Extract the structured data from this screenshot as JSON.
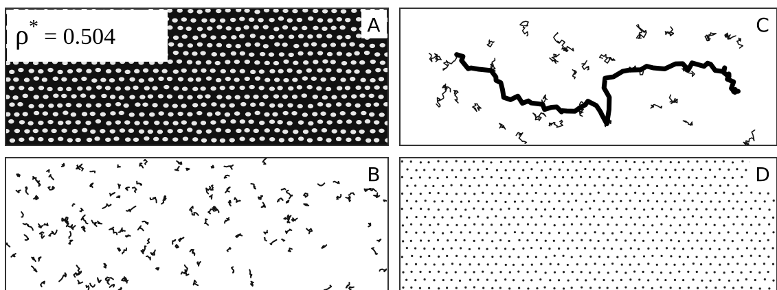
{
  "panels": [
    {
      "label": "A",
      "annotation": {
        "symbol": "ρ",
        "superscript": "*",
        "text": "= 0.504"
      }
    },
    {
      "label": "B"
    },
    {
      "label": "C"
    },
    {
      "label": "D"
    }
  ]
}
